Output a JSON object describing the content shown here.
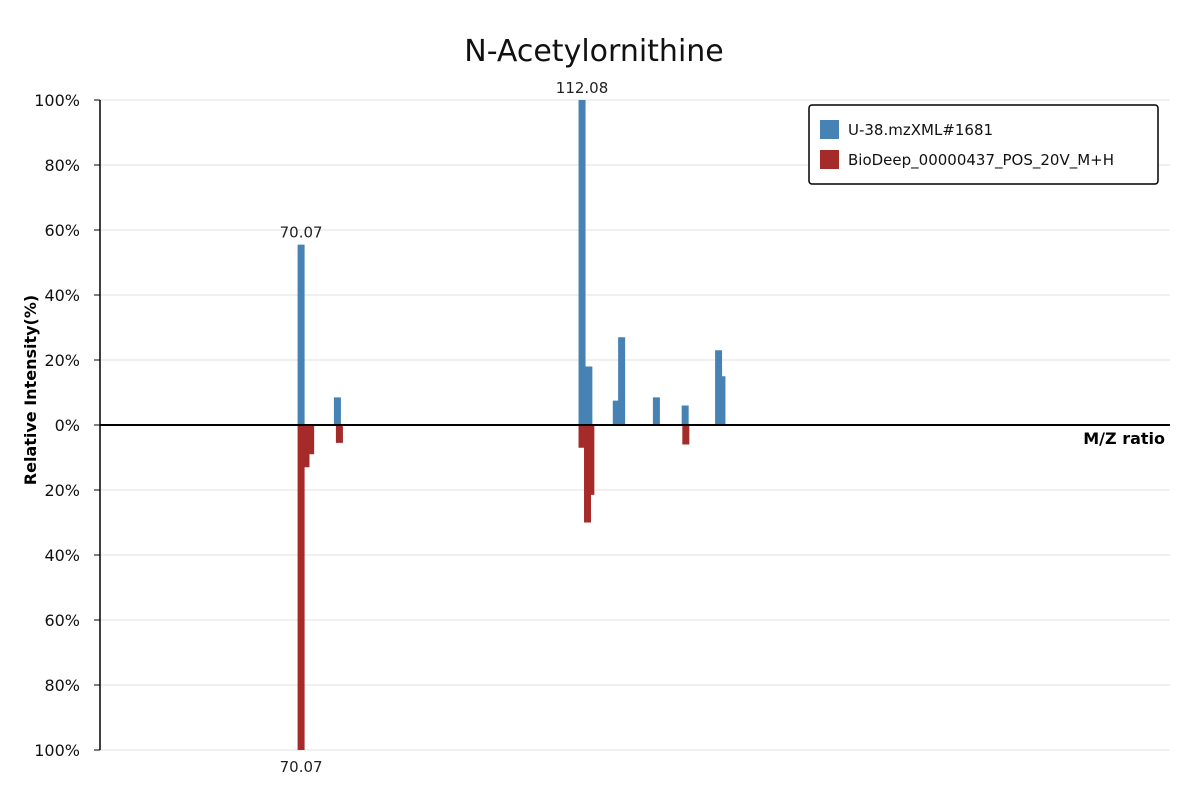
{
  "chart_data": {
    "type": "bar",
    "title": "N-Acetylornithine",
    "xlabel": "M/Z ratio",
    "ylabel": "Relative Intensity(%)",
    "ylim_top": [
      0,
      100
    ],
    "ylim_bottom": [
      0,
      100
    ],
    "y_ticks_top": [
      "0%",
      "20%",
      "40%",
      "60%",
      "80%",
      "100%"
    ],
    "y_ticks_bottom": [
      "20%",
      "40%",
      "60%",
      "80%",
      "100%"
    ],
    "x_range": [
      40,
      200
    ],
    "grid": true,
    "legend_position": "top-right",
    "series": [
      {
        "name": "U-38.mzXML#1681",
        "color": "#4682b4",
        "direction": "up",
        "peaks": [
          {
            "mz": 70.07,
            "intensity": 55.5
          },
          {
            "mz": 75.5,
            "intensity": 8.5
          },
          {
            "mz": 112.08,
            "intensity": 100
          },
          {
            "mz": 113.1,
            "intensity": 18
          },
          {
            "mz": 117.2,
            "intensity": 7.5
          },
          {
            "mz": 118.0,
            "intensity": 27
          },
          {
            "mz": 123.2,
            "intensity": 8.5
          },
          {
            "mz": 127.5,
            "intensity": 6
          },
          {
            "mz": 132.5,
            "intensity": 23
          },
          {
            "mz": 133.0,
            "intensity": 15
          }
        ]
      },
      {
        "name": "BioDeep_00000437_POS_20V_M+H",
        "color": "#a52a2a",
        "direction": "down",
        "peaks": [
          {
            "mz": 70.07,
            "intensity": 100
          },
          {
            "mz": 70.8,
            "intensity": 13
          },
          {
            "mz": 71.5,
            "intensity": 9
          },
          {
            "mz": 75.8,
            "intensity": 5.5
          },
          {
            "mz": 112.08,
            "intensity": 7
          },
          {
            "mz": 112.9,
            "intensity": 30
          },
          {
            "mz": 113.4,
            "intensity": 21.5
          },
          {
            "mz": 127.6,
            "intensity": 6
          }
        ]
      }
    ],
    "peak_labels": [
      {
        "text": "70.07",
        "series": 0,
        "mz": 70.07
      },
      {
        "text": "112.08",
        "series": 0,
        "mz": 112.08
      },
      {
        "text": "70.07",
        "series": 1,
        "mz": 70.07
      }
    ]
  }
}
